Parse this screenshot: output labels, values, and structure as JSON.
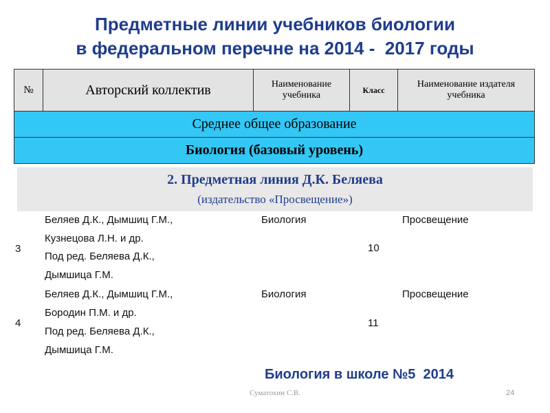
{
  "header": {
    "title_lines": [
      "Предметные линии учебников биологии",
      "в федеральном перечне на 2014 -  2017 годы"
    ]
  },
  "table": {
    "columns": [
      "№",
      "Авторский коллектив",
      "Наименование учебника",
      "Класс",
      "Наименование издателя  учебника"
    ],
    "level": "Среднее общее образование",
    "subject": "Биология (базовый уровень)",
    "line_title": "2. Предметная линия Д.К. Беляева",
    "line_publisher": "(издательство «Просвещение»)",
    "rows": [
      {
        "number": 3,
        "authors": [
          "Беляев Д.К., Дымшиц Г.М.,",
          "Кузнецова Л.Н. и др.",
          "Под ред. Беляева Д.К.,",
          "Дымшица Г.М."
        ],
        "title": "Биология",
        "grade": 10,
        "publisher": "Просвещение"
      },
      {
        "number": 4,
        "authors": [
          "Беляев Д.К., Дымшиц Г.М.,",
          "Бородин П.М. и др.",
          "Под ред. Беляева Д.К.,",
          "Дымшица Г.М."
        ],
        "title": "Биология",
        "grade": 11,
        "publisher": "Просвещение"
      }
    ]
  },
  "footer": {
    "note": "Биология в школе №5  2014",
    "author": "Суматохин С.В.",
    "page": 24
  }
}
